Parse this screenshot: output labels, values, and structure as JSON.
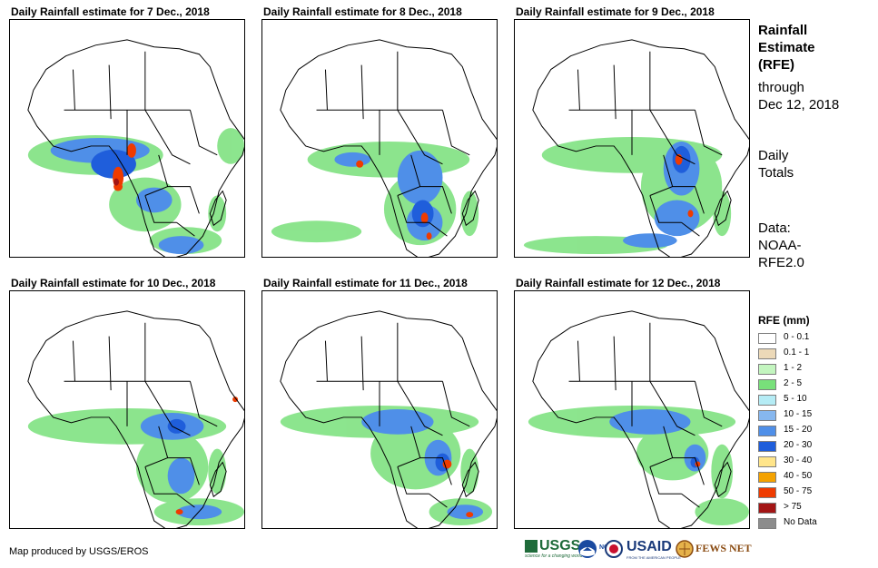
{
  "panels": [
    {
      "title": "Daily Rainfall estimate for 7 Dec., 2018"
    },
    {
      "title": "Daily Rainfall estimate for 8 Dec., 2018"
    },
    {
      "title": "Daily Rainfall estimate for 9 Dec., 2018"
    },
    {
      "title": "Daily Rainfall estimate for 10 Dec., 2018"
    },
    {
      "title": "Daily Rainfall estimate for 11 Dec., 2018"
    },
    {
      "title": "Daily Rainfall estimate for 12 Dec., 2018"
    }
  ],
  "sidebar": {
    "title_line1": "Rainfall",
    "title_line2": "Estimate",
    "title_line3": "(RFE)",
    "through": "through",
    "date": "Dec 12, 2018",
    "daily1": "Daily",
    "daily2": "Totals",
    "data1": "Data:",
    "data2": "NOAA-",
    "data3": "RFE2.0"
  },
  "legend": {
    "title": "RFE (mm)",
    "items": [
      {
        "label": "0 - 0.1",
        "color": "#ffffff"
      },
      {
        "label": "0.1 - 1",
        "color": "#ecd9b8"
      },
      {
        "label": "1 - 2",
        "color": "#c3f5bf"
      },
      {
        "label": "2 - 5",
        "color": "#78e07a"
      },
      {
        "label": "5 - 10",
        "color": "#b5ecf5"
      },
      {
        "label": "10 - 15",
        "color": "#86b7ef"
      },
      {
        "label": "15 - 20",
        "color": "#4f8fe8"
      },
      {
        "label": "20 - 30",
        "color": "#1f5edb"
      },
      {
        "label": "30 - 40",
        "color": "#ffe58a"
      },
      {
        "label": "40 - 50",
        "color": "#f4a200"
      },
      {
        "label": "50 - 75",
        "color": "#ef3b00"
      },
      {
        "label": "> 75",
        "color": "#a31515"
      },
      {
        "label": "No Data",
        "color": "#8c8c8c"
      }
    ]
  },
  "credit": "Map produced by USGS/EROS",
  "logos": {
    "usgs": "USGS",
    "usgs_tagline": "science for a changing world",
    "noaa": "NOAA",
    "usaid": "USAID",
    "usaid_tagline": "FROM THE AMERICAN PEOPLE",
    "fewsnet": "FEWS NET"
  }
}
